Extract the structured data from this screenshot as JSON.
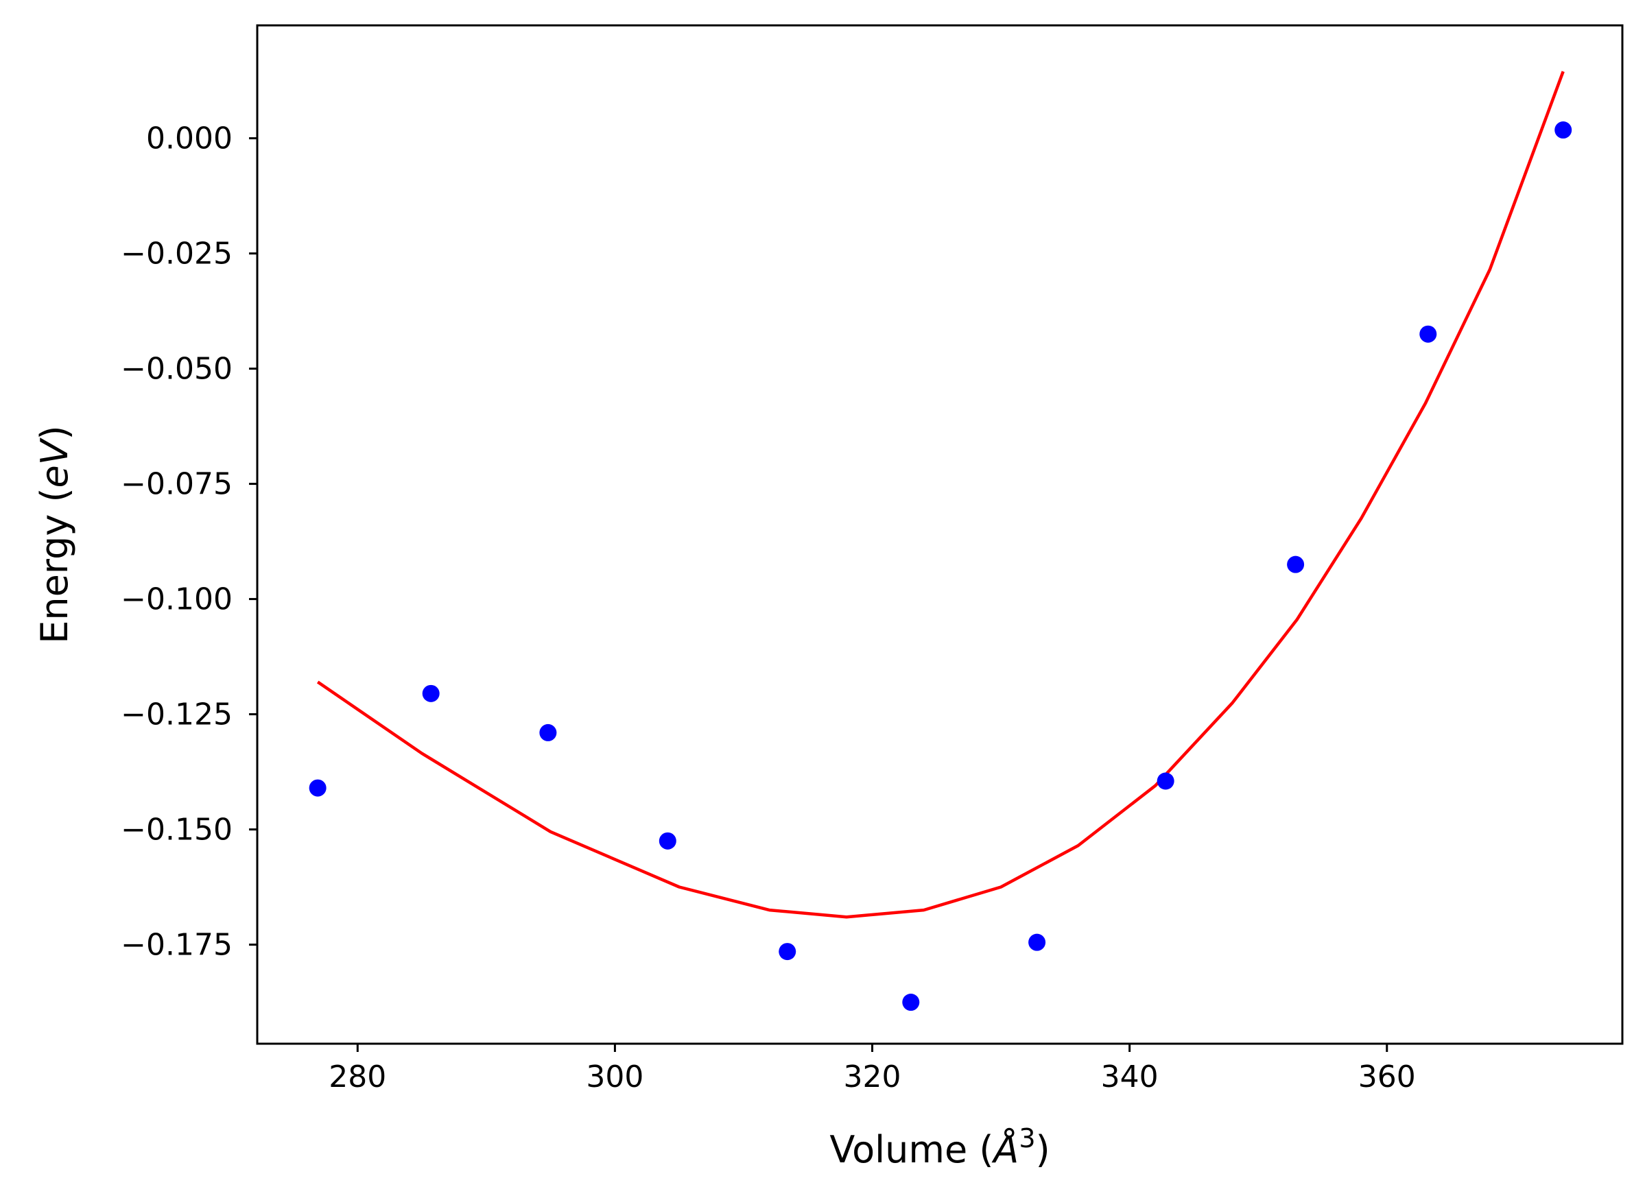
{
  "chart_data": {
    "type": "scatter",
    "title": "",
    "xlabel": "Volume ($\\AA^3$)",
    "xlabel_parts": {
      "prefix": "Volume (",
      "symbol": "Å",
      "exponent": "3",
      "suffix": ")"
    },
    "ylabel": "Energy ($eV$)",
    "ylabel_parts": {
      "prefix": "Energy (",
      "symbol": "eV",
      "suffix": ")"
    },
    "xlim": [
      272.2,
      378.3
    ],
    "ylim": [
      -0.1965,
      0.0245
    ],
    "x_ticks": [
      280,
      300,
      320,
      340,
      360
    ],
    "x_tick_labels": [
      "280",
      "300",
      "320",
      "340",
      "360"
    ],
    "y_ticks": [
      0.0,
      -0.025,
      -0.05,
      -0.075,
      -0.1,
      -0.125,
      -0.15,
      -0.175
    ],
    "y_tick_labels": [
      "0.000",
      "−0.025",
      "−0.050",
      "−0.075",
      "−0.100",
      "−0.125",
      "−0.150",
      "−0.175"
    ],
    "grid": false,
    "series": [
      {
        "type": "scatter",
        "color": "#0000ff",
        "x": [
          276.9,
          285.7,
          294.8,
          304.1,
          313.4,
          323.0,
          332.8,
          342.8,
          352.9,
          363.2,
          373.7
        ],
        "y": [
          -0.141,
          -0.1205,
          -0.129,
          -0.1525,
          -0.1765,
          -0.1875,
          -0.1745,
          -0.1395,
          -0.0925,
          -0.0425,
          0.0018
        ]
      },
      {
        "type": "line",
        "color": "#ff0000",
        "x": [
          276.9,
          285.0,
          295.0,
          305.0,
          312.0,
          318.0,
          324.0,
          330.0,
          336.0,
          342.0,
          348.0,
          353.0,
          358.0,
          363.0,
          368.0,
          373.7
        ],
        "y": [
          -0.118,
          -0.1335,
          -0.1505,
          -0.1625,
          -0.1675,
          -0.169,
          -0.1675,
          -0.1625,
          -0.1535,
          -0.1405,
          -0.1225,
          -0.1045,
          -0.0825,
          -0.0575,
          -0.0285,
          0.0145
        ]
      }
    ]
  }
}
